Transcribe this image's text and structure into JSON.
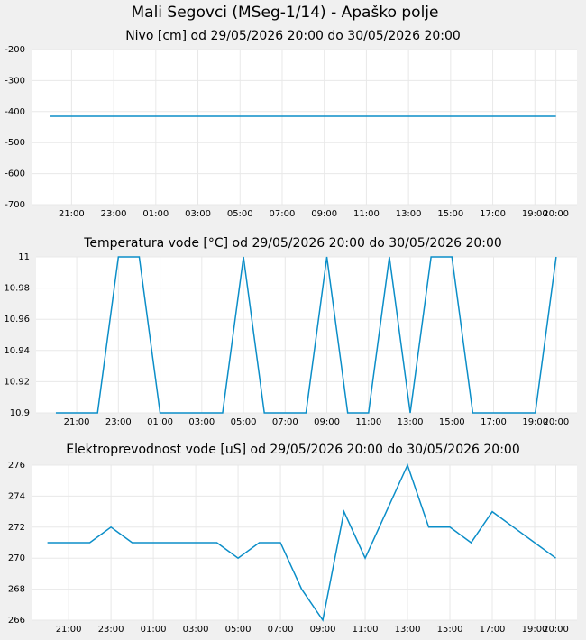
{
  "title": "Mali Segovci (MSeg-1/14) - Apaško polje",
  "chart_data": [
    {
      "type": "line",
      "title": "Nivo [cm] od 29/05/2026 20:00 do 30/05/2026 20:00",
      "x": [
        0,
        1,
        2,
        3,
        4,
        5,
        6,
        7,
        8,
        9,
        10,
        11,
        12,
        13,
        14,
        15,
        16,
        17,
        18,
        19,
        20,
        21,
        22,
        23,
        24
      ],
      "series": [
        {
          "name": "Nivo",
          "color": "#0b8ec8",
          "values": [
            -415,
            -415,
            -415,
            -415,
            -415,
            -415,
            -415,
            -415,
            -415,
            -415,
            -415,
            -415,
            -415,
            -415,
            -415,
            -415,
            -415,
            -415,
            -415,
            -415,
            -415,
            -415,
            -415,
            -415,
            -415
          ]
        }
      ],
      "xlim": [
        -0.9,
        25
      ],
      "xticks": [
        {
          "value": 1,
          "label": "21:00"
        },
        {
          "value": 3,
          "label": "23:00"
        },
        {
          "value": 5,
          "label": "01:00"
        },
        {
          "value": 7,
          "label": "03:00"
        },
        {
          "value": 9,
          "label": "05:00"
        },
        {
          "value": 11,
          "label": "07:00"
        },
        {
          "value": 13,
          "label": "09:00"
        },
        {
          "value": 15,
          "label": "11:00"
        },
        {
          "value": 17,
          "label": "13:00"
        },
        {
          "value": 19,
          "label": "15:00"
        },
        {
          "value": 21,
          "label": "17:00"
        },
        {
          "value": 23,
          "label": "19:00"
        },
        {
          "value": 24,
          "label": "20:00"
        }
      ],
      "ylim": [
        -700,
        -200
      ],
      "yticks": [
        -200,
        -300,
        -400,
        -500,
        -600,
        -700
      ],
      "grid": true
    },
    {
      "type": "line",
      "title": "Temperatura vode [°C] od 29/05/2026 20:00 do 30/05/2026 20:00",
      "x": [
        0,
        1,
        2,
        3,
        4,
        5,
        6,
        7,
        8,
        9,
        10,
        11,
        12,
        13,
        14,
        15,
        16,
        17,
        18,
        19,
        20,
        21,
        22,
        23,
        24
      ],
      "series": [
        {
          "name": "Temperatura",
          "color": "#0b8ec8",
          "values": [
            10.9,
            10.9,
            10.9,
            11,
            11,
            10.9,
            10.9,
            10.9,
            10.9,
            11,
            10.9,
            10.9,
            10.9,
            11,
            10.9,
            10.9,
            11,
            10.9,
            11,
            11,
            10.9,
            10.9,
            10.9,
            10.9,
            11
          ]
        }
      ],
      "xlim": [
        -0.95,
        25
      ],
      "xticks": [
        {
          "value": 1,
          "label": "21:00"
        },
        {
          "value": 3,
          "label": "23:00"
        },
        {
          "value": 5,
          "label": "01:00"
        },
        {
          "value": 7,
          "label": "03:00"
        },
        {
          "value": 9,
          "label": "05:00"
        },
        {
          "value": 11,
          "label": "07:00"
        },
        {
          "value": 13,
          "label": "09:00"
        },
        {
          "value": 15,
          "label": "11:00"
        },
        {
          "value": 17,
          "label": "13:00"
        },
        {
          "value": 19,
          "label": "15:00"
        },
        {
          "value": 21,
          "label": "17:00"
        },
        {
          "value": 23,
          "label": "19:00"
        },
        {
          "value": 24,
          "label": "20:00"
        }
      ],
      "ylim": [
        10.9,
        11
      ],
      "yticks": [
        10.9,
        10.92,
        10.94,
        10.96,
        10.98,
        11
      ],
      "grid": true
    },
    {
      "type": "line",
      "title": "Elektroprevodnost vode [uS] od 29/05/2026 20:00 do 30/05/2026 20:00",
      "x": [
        0,
        1,
        2,
        3,
        4,
        5,
        6,
        7,
        8,
        9,
        10,
        11,
        12,
        13,
        14,
        15,
        16,
        17,
        18,
        19,
        20,
        21,
        22,
        23,
        24
      ],
      "series": [
        {
          "name": "Elektroprevodnost",
          "color": "#0b8ec8",
          "values": [
            271,
            271,
            271,
            272,
            271,
            271,
            271,
            271,
            271,
            270,
            271,
            271,
            268,
            266,
            273,
            270,
            273,
            276,
            272,
            272,
            271,
            273,
            272,
            271,
            270
          ]
        }
      ],
      "xlim": [
        -0.75,
        25
      ],
      "xticks": [
        {
          "value": 1,
          "label": "21:00"
        },
        {
          "value": 3,
          "label": "23:00"
        },
        {
          "value": 5,
          "label": "01:00"
        },
        {
          "value": 7,
          "label": "03:00"
        },
        {
          "value": 9,
          "label": "05:00"
        },
        {
          "value": 11,
          "label": "07:00"
        },
        {
          "value": 13,
          "label": "09:00"
        },
        {
          "value": 15,
          "label": "11:00"
        },
        {
          "value": 17,
          "label": "13:00"
        },
        {
          "value": 19,
          "label": "15:00"
        },
        {
          "value": 21,
          "label": "17:00"
        },
        {
          "value": 23,
          "label": "19:00"
        },
        {
          "value": 24,
          "label": "20:00"
        }
      ],
      "ylim": [
        266,
        276
      ],
      "yticks": [
        266,
        268,
        270,
        272,
        274,
        276
      ],
      "grid": true
    }
  ]
}
